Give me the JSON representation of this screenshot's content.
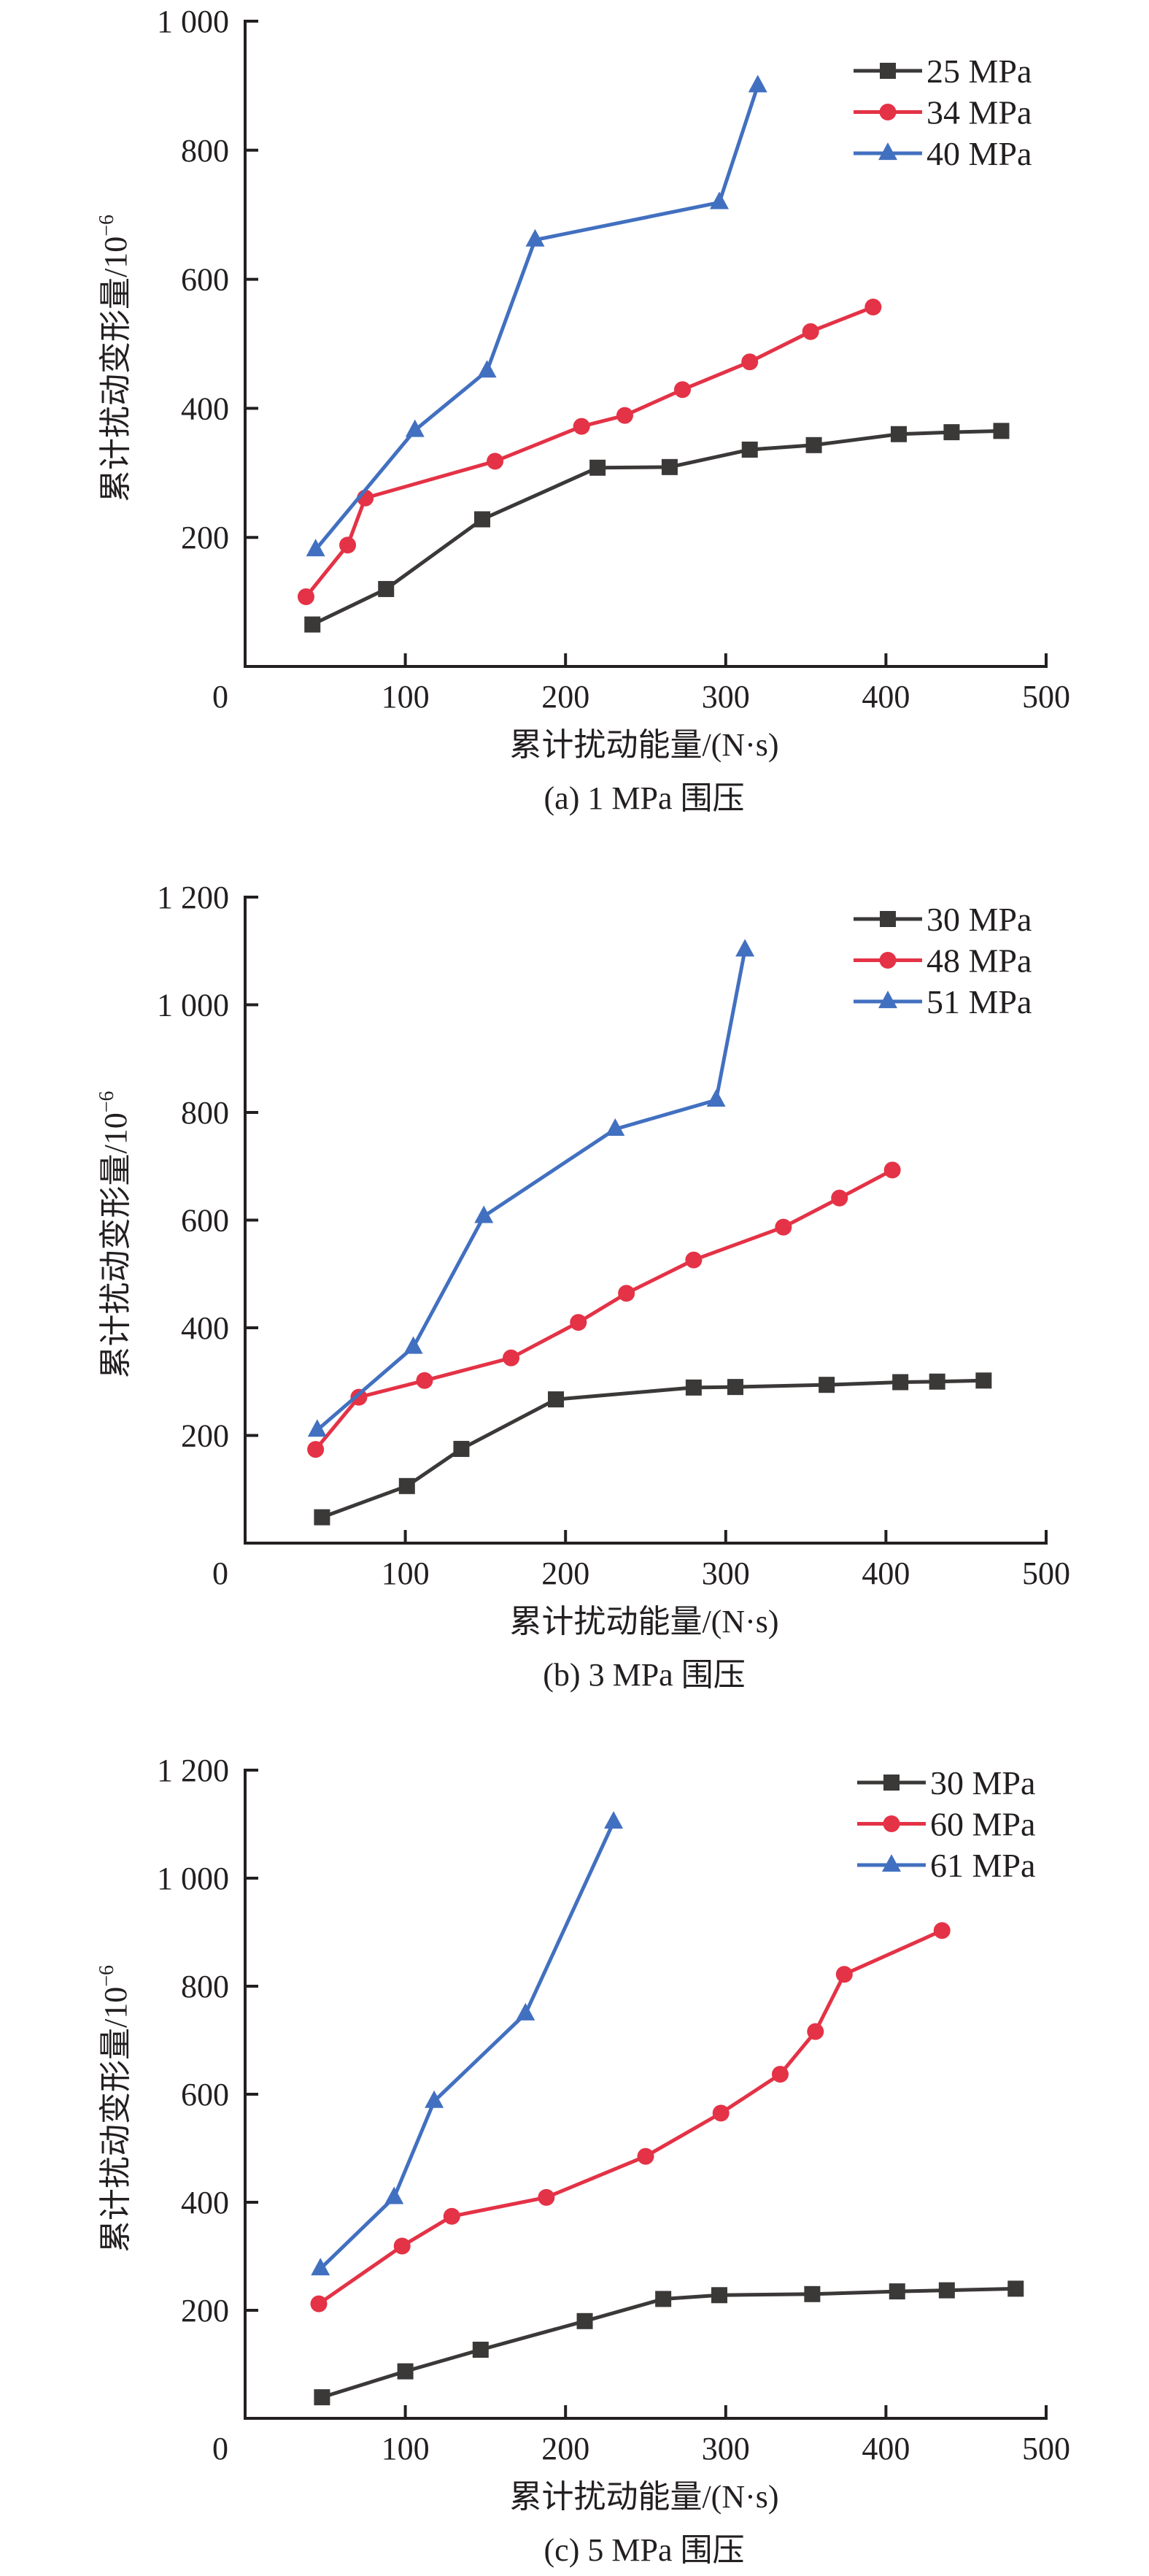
{
  "figure": {
    "panels": [
      "a",
      "b",
      "c"
    ]
  },
  "chart_data": [
    {
      "type": "line",
      "id": "a",
      "caption": "(a) 1 MPa 围压",
      "xlabel": "累计扰动能量/(N·s)",
      "ylabel": "累计扰动变形量/10",
      "ylabel_exponent": "−6",
      "xlim": [
        0,
        500
      ],
      "ylim": [
        0,
        1000
      ],
      "xticks": [
        0,
        100,
        200,
        300,
        400,
        500
      ],
      "xtick_labels": [
        "0",
        "100",
        "200",
        "300",
        "400",
        "500"
      ],
      "yticks": [
        200,
        400,
        600,
        800,
        1000
      ],
      "ytick_labels": [
        "200",
        "400",
        "600",
        "800",
        "1 000"
      ],
      "grid": false,
      "legend_position": "top-right",
      "series": [
        {
          "name": "25 MPa",
          "color": "#3b3838",
          "marker": "square",
          "x": [
            42,
            88,
            148,
            220,
            265,
            315,
            355,
            408,
            441,
            472
          ],
          "y": [
            65,
            120,
            228,
            308,
            309,
            336,
            343,
            360,
            363,
            365
          ]
        },
        {
          "name": "34 MPa",
          "color": "#e43246",
          "marker": "circle",
          "x": [
            38,
            64,
            75,
            156,
            210,
            237,
            273,
            315,
            353,
            392
          ],
          "y": [
            108,
            188,
            261,
            318,
            372,
            389,
            429,
            472,
            519,
            557
          ]
        },
        {
          "name": "40 MPa",
          "color": "#4270c0",
          "marker": "triangle",
          "x": [
            44,
            106,
            151,
            181,
            296,
            320
          ],
          "y": [
            181,
            366,
            458,
            661,
            719,
            900
          ]
        }
      ]
    },
    {
      "type": "line",
      "id": "b",
      "caption": "(b) 3 MPa 围压",
      "xlabel": "累计扰动能量/(N·s)",
      "ylabel": "累计扰动变形量/10",
      "ylabel_exponent": "−6",
      "xlim": [
        0,
        500
      ],
      "ylim": [
        0,
        1200
      ],
      "xticks": [
        0,
        100,
        200,
        300,
        400,
        500
      ],
      "xtick_labels": [
        "0",
        "100",
        "200",
        "300",
        "400",
        "500"
      ],
      "yticks": [
        200,
        400,
        600,
        800,
        1000,
        1200
      ],
      "ytick_labels": [
        "200",
        "400",
        "600",
        "800",
        "1 000",
        "1 200"
      ],
      "grid": false,
      "legend_position": "top-right",
      "series": [
        {
          "name": "30 MPa",
          "color": "#3b3838",
          "marker": "square",
          "x": [
            48,
            101,
            135,
            194,
            280,
            306,
            363,
            409,
            432,
            461
          ],
          "y": [
            48,
            106,
            175,
            267,
            289,
            290,
            294,
            299,
            300,
            302
          ]
        },
        {
          "name": "48 MPa",
          "color": "#e43246",
          "marker": "circle",
          "x": [
            44,
            71,
            112,
            166,
            208,
            238,
            280,
            336,
            371,
            404
          ],
          "y": [
            174,
            271,
            302,
            344,
            410,
            464,
            526,
            587,
            641,
            693
          ]
        },
        {
          "name": "51 MPa",
          "color": "#4270c0",
          "marker": "triangle",
          "x": [
            45,
            105,
            149,
            231,
            294,
            312
          ],
          "y": [
            210,
            364,
            607,
            769,
            823,
            1102
          ]
        }
      ]
    },
    {
      "type": "line",
      "id": "c",
      "caption": "(c) 5 MPa 围压",
      "xlabel": "累计扰动能量/(N·s)",
      "ylabel": "累计扰动变形量/10",
      "ylabel_exponent": "−6",
      "xlim": [
        0,
        500
      ],
      "ylim": [
        0,
        1200
      ],
      "xticks": [
        0,
        100,
        200,
        300,
        400,
        500
      ],
      "xtick_labels": [
        "0",
        "100",
        "200",
        "300",
        "400",
        "500"
      ],
      "yticks": [
        200,
        400,
        600,
        800,
        1000,
        1200
      ],
      "ytick_labels": [
        "200",
        "400",
        "600",
        "800",
        "1 000",
        "1 200"
      ],
      "grid": false,
      "legend_position": "top-right",
      "series": [
        {
          "name": "30 MPa",
          "color": "#3b3838",
          "marker": "square",
          "x": [
            48,
            100,
            147,
            212,
            261,
            296,
            354,
            407,
            438,
            481
          ],
          "y": [
            39,
            87,
            127,
            180,
            221,
            228,
            230,
            235,
            237,
            240
          ]
        },
        {
          "name": "60 MPa",
          "color": "#e43246",
          "marker": "circle",
          "x": [
            46,
            98,
            129,
            188,
            250,
            297,
            334,
            356,
            374,
            435
          ],
          "y": [
            212,
            319,
            374,
            409,
            485,
            565,
            637,
            716,
            822,
            903
          ]
        },
        {
          "name": "61 MPa",
          "color": "#4270c0",
          "marker": "triangle",
          "x": [
            47,
            93,
            118,
            175,
            230
          ],
          "y": [
            277,
            409,
            587,
            749,
            1104
          ]
        }
      ]
    }
  ]
}
